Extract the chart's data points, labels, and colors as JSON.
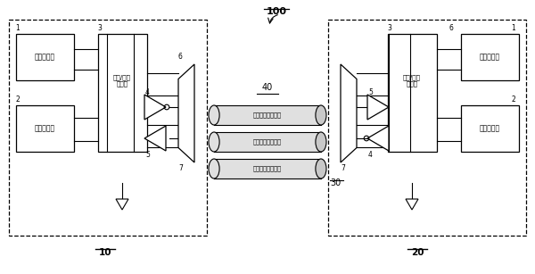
{
  "bg_color": "#ffffff",
  "line_color": "#000000",
  "label_100": "100",
  "label_10": "10",
  "label_20": "20",
  "label_40": "40",
  "label_30": "30",
  "text_power_circuit": "电源电路块",
  "text_func_circuit": "功能电路块",
  "text_io_circuit": "输入/输出\n电路块",
  "text_power_line": "电源地对传输线路",
  "text_diff_line1": "差分信号传输线路",
  "text_diff_line2": "差分信号传输线路",
  "num1": "1",
  "num2": "2",
  "num3": "3",
  "num4": "4",
  "num5": "5",
  "num6": "6",
  "num7": "7"
}
